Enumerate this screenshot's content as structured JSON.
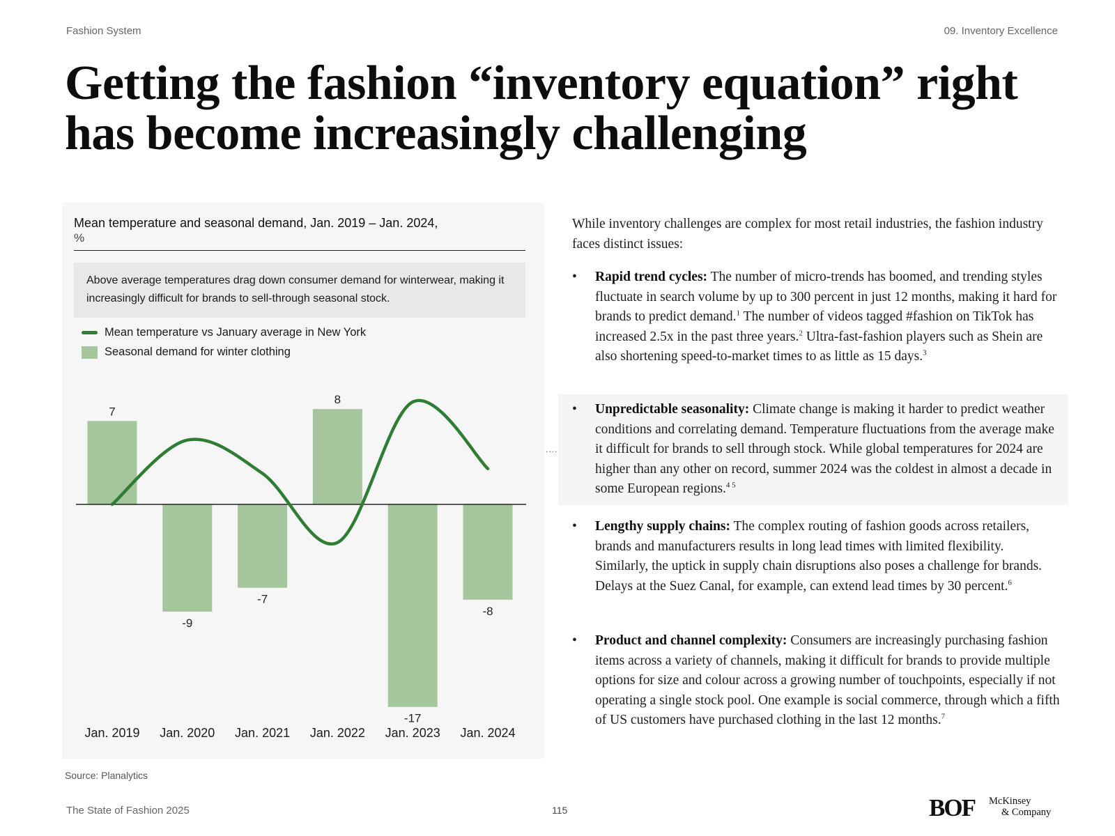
{
  "header": {
    "left": "Fashion System",
    "right": "09. Inventory Excellence"
  },
  "title": {
    "line1": "Getting the fashion “inventory equation” right",
    "line2": "has become increasingly challenging"
  },
  "chart_panel": {
    "title": "Mean temperature and seasonal demand, Jan. 2019 – Jan. 2024,",
    "unit": "%",
    "callout": "Above average temperatures drag down consumer demand for winterwear, making it increasingly difficult for brands to sell-through seasonal stock.",
    "legend": {
      "line_label": "Mean temperature vs January average in New York",
      "bar_label": "Seasonal demand for winter clothing"
    },
    "source": "Source: Planalytics"
  },
  "chart_data": {
    "type": "bar",
    "title": "Mean temperature and seasonal demand, Jan. 2019 – Jan. 2024,",
    "unit": "%",
    "categories": [
      "Jan. 2019",
      "Jan. 2020",
      "Jan. 2021",
      "Jan. 2022",
      "Jan. 2023",
      "Jan. 2024"
    ],
    "series": [
      {
        "name": "Seasonal demand for winter clothing",
        "type": "bar",
        "values": [
          7,
          -9,
          -7,
          8,
          -17,
          -8
        ],
        "color": "#a5c59c"
      },
      {
        "name": "Mean temperature vs January average in New York",
        "type": "line",
        "smooth": true,
        "values": [
          0,
          5.4,
          2.6,
          -3.2,
          8.6,
          3
        ],
        "color": "#2e7d32"
      }
    ],
    "ylim": [
      -17,
      8
    ],
    "zero_line": true,
    "grid": false,
    "legend_position": "top-left"
  },
  "ellipsis": "....",
  "text": {
    "intro": "While inventory challenges are complex for most retail industries, the fashion industry faces distinct issues:",
    "bullet_char": "•",
    "bullets": [
      {
        "title": "Rapid trend cycles:",
        "p1": " The number of micro-trends has boomed, and trending styles fluctuate in search volume by up to 300 percent in just 12 months, making it hard for brands to predict demand.",
        "s1": "1",
        "p2": " The number of videos tagged #fashion on TikTok has increased 2.5x in the past three years.",
        "s2": "2",
        "p3": " Ultra-fast-fashion players such as Shein are also shortening speed-to-market times to as little as 15 days.",
        "s3": "3"
      },
      {
        "title": "Unpredictable seasonality:",
        "p1": " Climate change is making it harder to predict weather conditions and correlating demand. Temperature fluctuations from the average make it difficult for brands to sell through stock. While global temperatures for 2024 are higher than any other on record, summer 2024 was the coldest in almost a decade in some European regions.",
        "s1": "4 5"
      },
      {
        "title": "Lengthy supply chains:",
        "p1": " The complex routing of fashion goods across retailers, brands and manufacturers results in long lead times with limited flexibility. Similarly, the uptick in supply chain disruptions also poses a challenge for brands. Delays at the Suez Canal, for example, can extend lead times by 30 percent.",
        "s1": "6"
      },
      {
        "title": "Product and channel complexity:",
        "p1": " Consumers are increasingly purchasing fashion items across a variety of channels, making it difficult for brands to provide multiple options for size and colour across a growing number of touchpoints, especially if not operating a single stock pool. One example is social commerce, through which a fifth of US customers have purchased clothing in the last 12 months.",
        "s1": "7"
      }
    ]
  },
  "footer": {
    "left": "The State of Fashion 2025",
    "page": "115",
    "logo_bof": "BOF",
    "logo_mck_line1": "McKinsey",
    "logo_mck_line2": "& Company"
  }
}
